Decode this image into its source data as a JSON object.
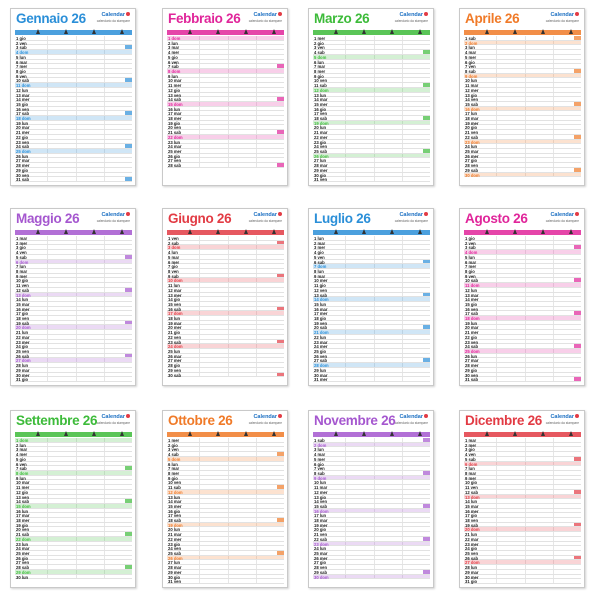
{
  "brand": {
    "name": "Calendar",
    "tagline": "calendario da stampare"
  },
  "months": [
    {
      "name": "Gennaio 26",
      "color": "#2b8fd8",
      "days": 31
    },
    {
      "name": "Febbraio 26",
      "color": "#e0259a",
      "days": 28
    },
    {
      "name": "Marzo 26",
      "color": "#3dbb3a",
      "days": 31
    },
    {
      "name": "Aprile 26",
      "color": "#f07a28",
      "days": 30
    },
    {
      "name": "Maggio 26",
      "color": "#a557cf",
      "days": 31
    },
    {
      "name": "Giugno 26",
      "color": "#e23b44",
      "days": 30
    },
    {
      "name": "Luglio 26",
      "color": "#2b8fd8",
      "days": 31
    },
    {
      "name": "Agosto 26",
      "color": "#e0259a",
      "days": 31
    },
    {
      "name": "Settembre 26",
      "color": "#3dbb3a",
      "days": 30
    },
    {
      "name": "Ottobre 26",
      "color": "#f07a28",
      "days": 31
    },
    {
      "name": "Novembre 26",
      "color": "#a557cf",
      "days": 30
    },
    {
      "name": "Dicembre 26",
      "color": "#e23b44",
      "days": 31
    }
  ]
}
